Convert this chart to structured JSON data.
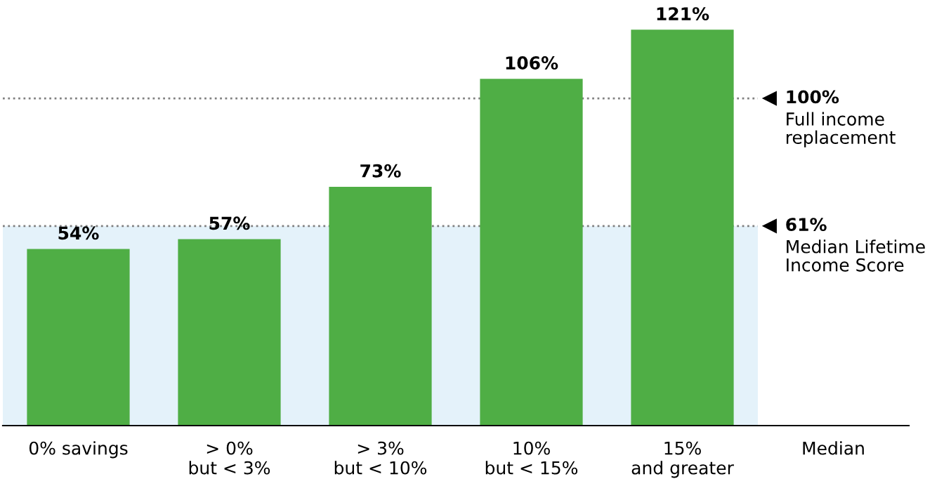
{
  "chart_data": {
    "type": "bar",
    "categories": [
      "0% savings",
      "> 0%\nbut < 3%",
      "> 3%\nbut < 10%",
      "10%\nbut < 15%",
      "15%\nand greater",
      "Median"
    ],
    "values": [
      54,
      57,
      73,
      106,
      121,
      null
    ],
    "value_labels": [
      "54%",
      "57%",
      "73%",
      "106%",
      "121%",
      null
    ],
    "color": "#4fae45",
    "tick_labels": "x",
    "grid": false,
    "bands": [
      {
        "axis": "y",
        "from": 0,
        "to": 61,
        "color": "#e4f2fa"
      }
    ],
    "ref_lines": [
      {
        "axis": "y",
        "value": 100,
        "label": "100%\nFull income\nreplacement",
        "color": "#808080",
        "line_style": "dotted"
      },
      {
        "axis": "y",
        "value": 61,
        "label": "61%\nMedian Lifetime\nIncome Score",
        "color": "#808080",
        "line_style": "dotted"
      }
    ]
  }
}
